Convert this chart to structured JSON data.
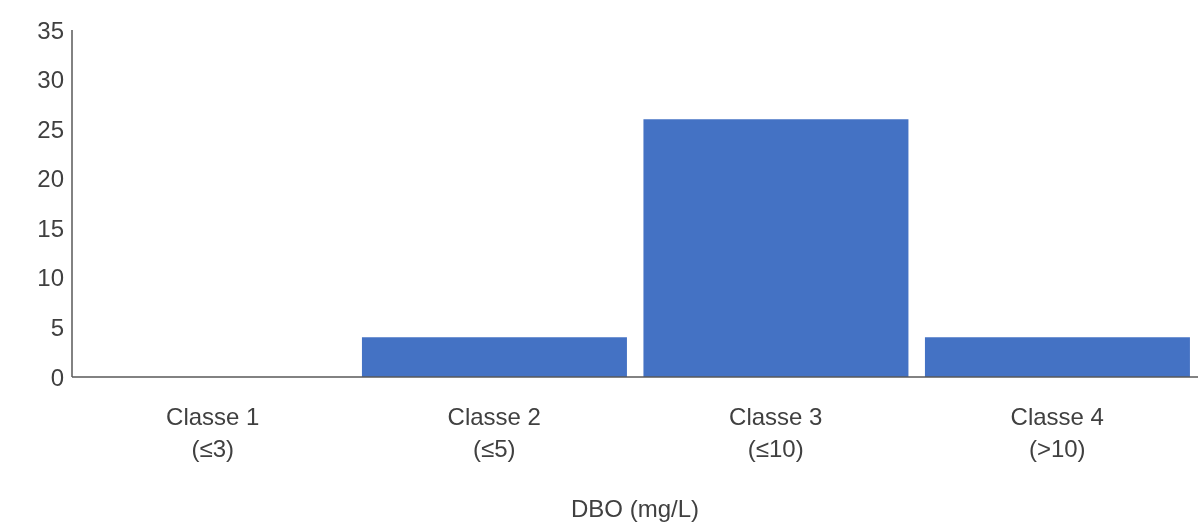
{
  "chart_data": {
    "type": "bar",
    "xlabel": "DBO (mg/L)",
    "categories": [
      "Classe 1\n(≤3)",
      "Classe 2\n(≤5)",
      "Classe 3\n(≤10)",
      "Classe 4\n(>10)"
    ],
    "values": [
      0,
      4,
      26,
      4
    ],
    "color": "#4472c4",
    "ylim": [
      0,
      35
    ],
    "yticks": [
      0,
      5,
      10,
      15,
      20,
      25,
      30,
      35
    ],
    "grid": false
  }
}
